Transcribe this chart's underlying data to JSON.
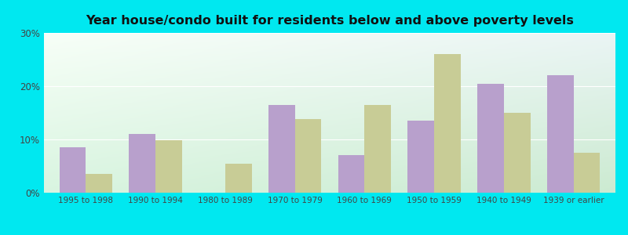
{
  "title": "Year house/condo built for residents below and above poverty levels",
  "categories": [
    "1995 to 1998",
    "1990 to 1994",
    "1980 to 1989",
    "1970 to 1979",
    "1960 to 1969",
    "1950 to 1959",
    "1940 to 1949",
    "1939 or earlier"
  ],
  "below_poverty": [
    8.5,
    11.0,
    0.0,
    16.5,
    7.0,
    13.5,
    20.5,
    22.0
  ],
  "above_poverty": [
    3.5,
    9.8,
    5.5,
    13.8,
    16.5,
    26.0,
    15.0,
    7.5
  ],
  "below_color": "#b8a0cc",
  "above_color": "#c8cc96",
  "gradient_topleft": [
    0.97,
    1.0,
    0.97
  ],
  "gradient_topright": [
    0.92,
    0.96,
    0.96
  ],
  "gradient_bottomleft": [
    0.85,
    0.96,
    0.88
  ],
  "gradient_bottomright": [
    0.8,
    0.92,
    0.82
  ],
  "ylim": [
    0,
    30
  ],
  "yticks": [
    0,
    10,
    20,
    30
  ],
  "ytick_labels": [
    "0%",
    "10%",
    "20%",
    "30%"
  ],
  "bar_width": 0.38,
  "outer_bg": "#00e8f0"
}
